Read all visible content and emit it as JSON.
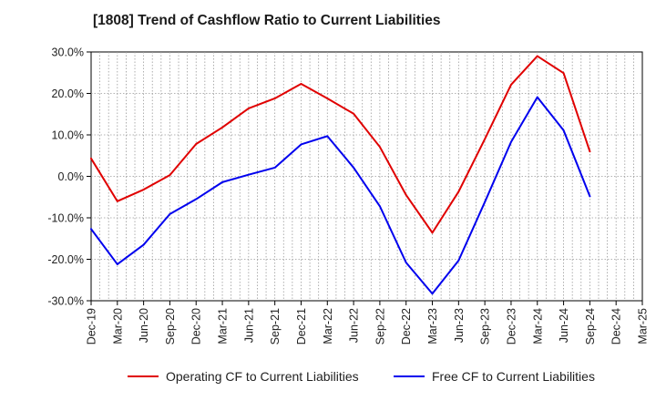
{
  "chart_data": {
    "type": "line",
    "title": "[1808]  Trend of Cashflow Ratio to Current Liabilities",
    "xlabel": "",
    "ylabel": "",
    "ylim": [
      -30,
      30
    ],
    "yticks": [
      "30.0%",
      "20.0%",
      "10.0%",
      "0.0%",
      "-10.0%",
      "-20.0%",
      "-30.0%"
    ],
    "ytick_values": [
      30,
      20,
      10,
      0,
      -10,
      -20,
      -30
    ],
    "x_tick_labels": [
      "Dec-19",
      "Mar-20",
      "Jun-20",
      "Sep-20",
      "Dec-20",
      "Mar-21",
      "Jun-21",
      "Sep-21",
      "Dec-21",
      "Mar-22",
      "Jun-22",
      "Sep-22",
      "Dec-22",
      "Mar-23",
      "Jun-23",
      "Sep-23",
      "Dec-23",
      "Mar-24",
      "Jun-24",
      "Sep-24",
      "Dec-24",
      "Mar-25"
    ],
    "x_months": [
      "2019-12",
      "2020-01",
      "2020-02",
      "2020-03",
      "2020-04",
      "2020-05",
      "2020-06",
      "2020-07",
      "2020-08",
      "2020-09",
      "2020-10",
      "2020-11",
      "2020-12",
      "2021-01",
      "2021-02",
      "2021-03",
      "2021-04",
      "2021-05",
      "2021-06",
      "2021-07",
      "2021-08",
      "2021-09",
      "2021-10",
      "2021-11",
      "2021-12",
      "2022-01",
      "2022-02",
      "2022-03",
      "2022-04",
      "2022-05",
      "2022-06",
      "2022-07",
      "2022-08",
      "2022-09",
      "2022-10",
      "2022-11",
      "2022-12",
      "2023-01",
      "2023-02",
      "2023-03",
      "2023-04",
      "2023-05",
      "2023-06",
      "2023-07",
      "2023-08",
      "2023-09",
      "2023-10",
      "2023-11",
      "2023-12",
      "2024-01",
      "2024-02",
      "2024-03",
      "2024-04",
      "2024-05",
      "2024-06",
      "2024-07",
      "2024-08",
      "2024-09",
      "2024-10",
      "2024-11",
      "2024-12",
      "2025-01",
      "2025-02",
      "2025-03"
    ],
    "grid": true,
    "legend_position": "bottom",
    "series": [
      {
        "name": "Operating CF to Current Liabilities",
        "color": "#e00000",
        "points": [
          [
            "2019-12",
            4.3
          ],
          [
            "2020-03",
            -6.0
          ],
          [
            "2020-06",
            -3.2
          ],
          [
            "2020-09",
            0.3
          ],
          [
            "2020-12",
            7.8
          ],
          [
            "2021-03",
            11.8
          ],
          [
            "2021-06",
            16.4
          ],
          [
            "2021-09",
            18.8
          ],
          [
            "2021-12",
            22.3
          ],
          [
            "2022-03",
            18.8
          ],
          [
            "2022-06",
            15.1
          ],
          [
            "2022-09",
            7.1
          ],
          [
            "2022-12",
            -4.5
          ],
          [
            "2023-03",
            -13.6
          ],
          [
            "2023-06",
            -3.7
          ],
          [
            "2023-09",
            9.0
          ],
          [
            "2023-12",
            22.1
          ],
          [
            "2024-03",
            29.0
          ],
          [
            "2024-06",
            24.9
          ],
          [
            "2024-09",
            6.0
          ]
        ]
      },
      {
        "name": "Free CF to Current Liabilities",
        "color": "#0000ee",
        "points": [
          [
            "2019-12",
            -12.7
          ],
          [
            "2020-03",
            -21.2
          ],
          [
            "2020-06",
            -16.5
          ],
          [
            "2020-09",
            -9.1
          ],
          [
            "2020-12",
            -5.5
          ],
          [
            "2021-03",
            -1.4
          ],
          [
            "2021-06",
            0.4
          ],
          [
            "2021-09",
            2.1
          ],
          [
            "2021-12",
            7.7
          ],
          [
            "2022-03",
            9.7
          ],
          [
            "2022-06",
            2.1
          ],
          [
            "2022-09",
            -7.2
          ],
          [
            "2022-12",
            -20.8
          ],
          [
            "2023-03",
            -28.3
          ],
          [
            "2023-06",
            -20.3
          ],
          [
            "2023-09",
            -6.2
          ],
          [
            "2023-12",
            8.3
          ],
          [
            "2024-03",
            19.1
          ],
          [
            "2024-06",
            11.1
          ],
          [
            "2024-09",
            -4.8
          ]
        ]
      }
    ]
  }
}
